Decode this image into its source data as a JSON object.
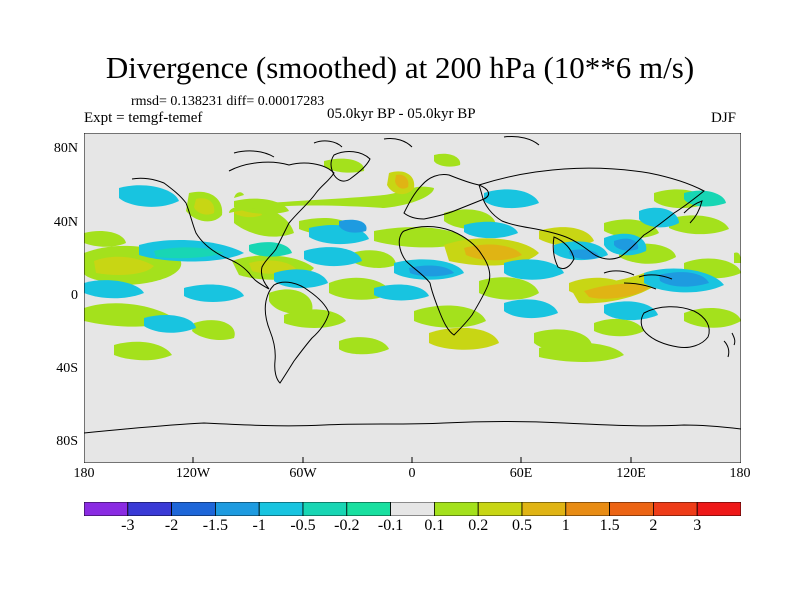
{
  "header": {
    "title": "Divergence (smoothed) at 200 hPa (10**6 m/s)",
    "stats": "rmsd= 0.138231  diff= 0.00017283",
    "experiment": "Expt = temgf-temef",
    "period": "05.0kyr BP - 05.0kyr BP",
    "season": "DJF"
  },
  "map": {
    "lat_labels": [
      "80N",
      "40N",
      "0",
      "40S",
      "80S"
    ],
    "lon_labels": [
      "180",
      "120W",
      "60W",
      "0",
      "60E",
      "120E",
      "180"
    ]
  },
  "colorbar": {
    "labels": [
      "-3",
      "-2",
      "-1.5",
      "-1",
      "-0.5",
      "-0.2",
      "-0.1",
      "0.1",
      "0.2",
      "0.5",
      "1",
      "1.5",
      "2",
      "3"
    ],
    "colors": [
      "#8a2be2",
      "#3a3ad6",
      "#1e66d8",
      "#1e9be0",
      "#18c4e0",
      "#18d6b4",
      "#19e0a0",
      "#e6e6e6",
      "#a4e11c",
      "#c8d614",
      "#e0b414",
      "#e88c14",
      "#ec6414",
      "#ee3c18",
      "#ee1818"
    ]
  },
  "colors": {
    "land_background": "#e6e6e6",
    "coastline": "#000000"
  }
}
